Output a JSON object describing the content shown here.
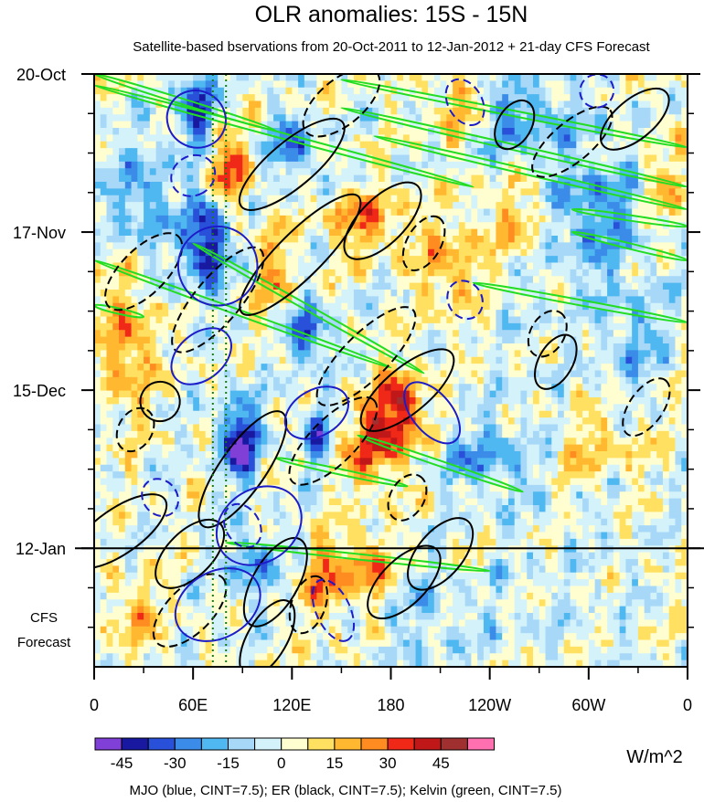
{
  "chart_data": {
    "type": "heatmap",
    "title": "OLR anomalies: 15S - 15N",
    "subtitle": "Satellite-based bservations from 20-Oct-2011 to 12-Jan-2012 + 21-day CFS Forecast",
    "x_tick_labels": [
      "0",
      "60E",
      "120E",
      "180",
      "120W",
      "60W",
      "0"
    ],
    "x_ticks_deg": [
      0,
      60,
      120,
      180,
      240,
      300,
      360
    ],
    "x_range_deg": [
      0,
      360
    ],
    "y_tick_labels": [
      "20-Oct",
      "17-Nov",
      "15-Dec",
      "12-Jan"
    ],
    "y_ticks_day": [
      0,
      28,
      56,
      84
    ],
    "y_range_day": [
      0,
      105
    ],
    "observation_end_day": 84,
    "forecast_label": [
      "CFS",
      "Forecast"
    ],
    "dotted_lines_deg": [
      72,
      80
    ],
    "colorbar": {
      "colors": [
        "#8040d8",
        "#1818a0",
        "#2850d8",
        "#3a8ce8",
        "#50b8f0",
        "#a8d8f8",
        "#d4f2fa",
        "#fffed0",
        "#ffe060",
        "#ffb830",
        "#ff8c20",
        "#f02818",
        "#c01818",
        "#a03030",
        "#ff70b0"
      ],
      "tick_values": [
        -45,
        -30,
        -15,
        0,
        15,
        30,
        45
      ],
      "tick_labels": [
        "-45",
        "-30",
        "-15",
        "0",
        "15",
        "30",
        "45"
      ],
      "contour_interval": 7.5,
      "units": "W/m^2"
    },
    "legend_caption": "MJO (blue, CINT=7.5); ER (black, CINT=7.5); Kelvin (green, CINT=7.5)",
    "contour_colors": {
      "mjo": "#1c1cc8",
      "er": "#000000",
      "kelvin": "#22dd22"
    },
    "anomaly_features": [
      {
        "lon": 62,
        "day": 6,
        "amp": -42,
        "rx": 10,
        "ry": 6
      },
      {
        "lon": 120,
        "day": 13,
        "amp": -30,
        "rx": 14,
        "ry": 5
      },
      {
        "lon": 68,
        "day": 30,
        "amp": -50,
        "rx": 12,
        "ry": 8
      },
      {
        "lon": 88,
        "day": 65,
        "amp": -48,
        "rx": 12,
        "ry": 7
      },
      {
        "lon": 130,
        "day": 46,
        "amp": -38,
        "rx": 12,
        "ry": 5
      },
      {
        "lon": 135,
        "day": 64,
        "amp": -30,
        "rx": 8,
        "ry": 6
      },
      {
        "lon": 30,
        "day": 22,
        "amp": -22,
        "rx": 20,
        "ry": 10
      },
      {
        "lon": 300,
        "day": 25,
        "amp": -22,
        "rx": 35,
        "ry": 10
      },
      {
        "lon": 260,
        "day": 8,
        "amp": -18,
        "rx": 30,
        "ry": 6
      },
      {
        "lon": 235,
        "day": 68,
        "amp": -20,
        "rx": 25,
        "ry": 6
      },
      {
        "lon": 330,
        "day": 47,
        "amp": -15,
        "rx": 20,
        "ry": 10
      },
      {
        "lon": 95,
        "day": 87,
        "amp": -25,
        "rx": 14,
        "ry": 6
      },
      {
        "lon": 200,
        "day": 95,
        "amp": -10,
        "rx": 40,
        "ry": 8
      },
      {
        "lon": 82,
        "day": 17,
        "amp": 32,
        "rx": 12,
        "ry": 6
      },
      {
        "lon": 165,
        "day": 26,
        "amp": 25,
        "rx": 25,
        "ry": 5
      },
      {
        "lon": 185,
        "day": 59,
        "amp": 42,
        "rx": 14,
        "ry": 6
      },
      {
        "lon": 170,
        "day": 66,
        "amp": 32,
        "rx": 18,
        "ry": 7
      },
      {
        "lon": 165,
        "day": 88,
        "amp": 32,
        "rx": 14,
        "ry": 6
      },
      {
        "lon": 140,
        "day": 90,
        "amp": 30,
        "rx": 10,
        "ry": 7
      },
      {
        "lon": 20,
        "day": 48,
        "amp": 25,
        "rx": 16,
        "ry": 12
      },
      {
        "lon": 215,
        "day": 35,
        "amp": 20,
        "rx": 18,
        "ry": 8
      },
      {
        "lon": 260,
        "day": 26,
        "amp": 20,
        "rx": 25,
        "ry": 8
      },
      {
        "lon": 220,
        "day": 5,
        "amp": 20,
        "rx": 15,
        "ry": 6
      },
      {
        "lon": 110,
        "day": 35,
        "amp": 22,
        "rx": 10,
        "ry": 8
      },
      {
        "lon": 25,
        "day": 96,
        "amp": 18,
        "rx": 16,
        "ry": 6
      },
      {
        "lon": 305,
        "day": 66,
        "amp": 15,
        "rx": 25,
        "ry": 8
      },
      {
        "lon": 345,
        "day": 20,
        "amp": 15,
        "rx": 15,
        "ry": 8
      }
    ],
    "kelvin_bands": [
      {
        "lon1": 0,
        "day1": 0,
        "lon2": 110,
        "day2": 10
      },
      {
        "lon1": 0,
        "day1": 2,
        "lon2": 230,
        "day2": 20
      },
      {
        "lon1": 150,
        "day1": 1,
        "lon2": 360,
        "day2": 13
      },
      {
        "lon1": 150,
        "day1": 6,
        "lon2": 360,
        "day2": 20
      },
      {
        "lon1": 170,
        "day1": 11,
        "lon2": 360,
        "day2": 24
      },
      {
        "lon1": 290,
        "day1": 24,
        "lon2": 360,
        "day2": 27
      },
      {
        "lon1": 290,
        "day1": 28,
        "lon2": 360,
        "day2": 33
      },
      {
        "lon1": 230,
        "day1": 37,
        "lon2": 360,
        "day2": 44
      },
      {
        "lon1": 0,
        "day1": 33,
        "lon2": 180,
        "day2": 52
      },
      {
        "lon1": 60,
        "day1": 30,
        "lon2": 200,
        "day2": 53
      },
      {
        "lon1": 0,
        "day1": 41,
        "lon2": 30,
        "day2": 43
      },
      {
        "lon1": 160,
        "day1": 64,
        "lon2": 260,
        "day2": 74
      },
      {
        "lon1": 110,
        "day1": 68,
        "lon2": 190,
        "day2": 73
      },
      {
        "lon1": 80,
        "day1": 83,
        "lon2": 240,
        "day2": 88
      }
    ],
    "er_ellipses": [
      {
        "lon": 40,
        "day": 58,
        "rx": 12,
        "ry": 3.5,
        "ang": -60,
        "dash": false
      },
      {
        "lon": 15,
        "day": 81,
        "rx": 34,
        "ry": 4,
        "ang": -35,
        "dash": false
      },
      {
        "lon": 58,
        "day": 85,
        "rx": 26,
        "ry": 4,
        "ang": -45,
        "dash": false
      },
      {
        "lon": 90,
        "day": 70,
        "rx": 42,
        "ry": 4,
        "ang": -55,
        "dash": false
      },
      {
        "lon": 110,
        "day": 90,
        "rx": 30,
        "ry": 4,
        "ang": -60,
        "dash": false
      },
      {
        "lon": 105,
        "day": 100,
        "rx": 26,
        "ry": 3.5,
        "ang": -60,
        "dash": false
      },
      {
        "lon": 125,
        "day": 32,
        "rx": 50,
        "ry": 4,
        "ang": -45,
        "dash": false
      },
      {
        "lon": 120,
        "day": 16,
        "rx": 40,
        "ry": 4,
        "ang": -40,
        "dash": false
      },
      {
        "lon": 175,
        "day": 26,
        "rx": 30,
        "ry": 4,
        "ang": -45,
        "dash": false
      },
      {
        "lon": 190,
        "day": 56,
        "rx": 35,
        "ry": 4,
        "ang": -40,
        "dash": false
      },
      {
        "lon": 188,
        "day": 90,
        "rx": 28,
        "ry": 4,
        "ang": -45,
        "dash": false
      },
      {
        "lon": 210,
        "day": 85,
        "rx": 26,
        "ry": 4,
        "ang": -50,
        "dash": false
      },
      {
        "lon": 255,
        "day": 9,
        "rx": 16,
        "ry": 3,
        "ang": -60,
        "dash": false
      },
      {
        "lon": 328,
        "day": 8,
        "rx": 25,
        "ry": 3.5,
        "ang": -40,
        "dash": false
      },
      {
        "lon": 280,
        "day": 51,
        "rx": 18,
        "ry": 3,
        "ang": -60,
        "dash": false
      },
      {
        "lon": 30,
        "day": 35,
        "rx": 30,
        "ry": 4,
        "ang": -45,
        "dash": true
      },
      {
        "lon": 75,
        "day": 40,
        "rx": 40,
        "ry": 4,
        "ang": -50,
        "dash": true
      },
      {
        "lon": 150,
        "day": 5,
        "rx": 28,
        "ry": 4,
        "ang": -40,
        "dash": true
      },
      {
        "lon": 165,
        "day": 50,
        "rx": 40,
        "ry": 4,
        "ang": -45,
        "dash": true
      },
      {
        "lon": 145,
        "day": 65,
        "rx": 35,
        "ry": 4,
        "ang": -45,
        "dash": true
      },
      {
        "lon": 200,
        "day": 30,
        "rx": 18,
        "ry": 3,
        "ang": -60,
        "dash": true
      },
      {
        "lon": 290,
        "day": 12,
        "rx": 30,
        "ry": 3.5,
        "ang": -40,
        "dash": true
      },
      {
        "lon": 335,
        "day": 59,
        "rx": 20,
        "ry": 3,
        "ang": -55,
        "dash": true
      },
      {
        "lon": 275,
        "day": 46,
        "rx": 15,
        "ry": 3,
        "ang": -60,
        "dash": true
      },
      {
        "lon": 58,
        "day": 95,
        "rx": 28,
        "ry": 4,
        "ang": -45,
        "dash": true
      },
      {
        "lon": 25,
        "day": 63,
        "rx": 14,
        "ry": 3,
        "ang": -60,
        "dash": true
      },
      {
        "lon": 130,
        "day": 94,
        "rx": 18,
        "ry": 3,
        "ang": -70,
        "dash": true
      },
      {
        "lon": 190,
        "day": 75,
        "rx": 15,
        "ry": 3,
        "ang": -60,
        "dash": true
      }
    ],
    "mjo_ellipses": [
      {
        "lon": 62,
        "day": 8,
        "rx": 18,
        "ry": 5,
        "ang": 30,
        "dash": false
      },
      {
        "lon": 75,
        "day": 34,
        "rx": 24,
        "ry": 7,
        "ang": 45,
        "dash": false
      },
      {
        "lon": 65,
        "day": 50,
        "rx": 14,
        "ry": 6,
        "ang": 50,
        "dash": false
      },
      {
        "lon": 100,
        "day": 80,
        "rx": 22,
        "ry": 8,
        "ang": 55,
        "dash": false
      },
      {
        "lon": 75,
        "day": 94,
        "rx": 20,
        "ry": 8,
        "ang": 60,
        "dash": false
      },
      {
        "lon": 135,
        "day": 60,
        "rx": 14,
        "ry": 6,
        "ang": 60,
        "dash": false
      },
      {
        "lon": 205,
        "day": 60,
        "rx": 22,
        "ry": 3.5,
        "ang": 50,
        "dash": false
      },
      {
        "lon": 225,
        "day": 5,
        "rx": 15,
        "ry": 3,
        "ang": 60,
        "dash": true
      },
      {
        "lon": 60,
        "day": 18,
        "rx": 12,
        "ry": 4,
        "ang": 60,
        "dash": true
      },
      {
        "lon": 90,
        "day": 80,
        "rx": 14,
        "ry": 3,
        "ang": 60,
        "dash": true
      },
      {
        "lon": 145,
        "day": 95,
        "rx": 20,
        "ry": 3,
        "ang": 65,
        "dash": true
      },
      {
        "lon": 225,
        "day": 40,
        "rx": 12,
        "ry": 3,
        "ang": 60,
        "dash": true
      },
      {
        "lon": 40,
        "day": 75,
        "rx": 12,
        "ry": 3,
        "ang": 50,
        "dash": true
      },
      {
        "lon": 305,
        "day": 3,
        "rx": 10,
        "ry": 3,
        "ang": 60,
        "dash": true
      }
    ]
  }
}
